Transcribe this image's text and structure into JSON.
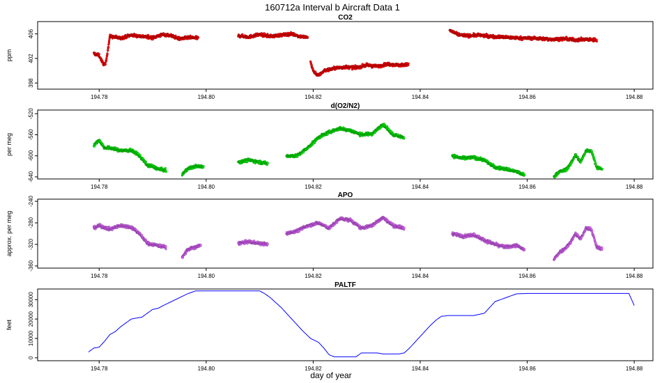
{
  "title": "160712a   Interval b Aircraft Data 1",
  "xlabel": "day of year",
  "chart_data": [
    {
      "type": "scatter",
      "title": "CO2",
      "ylabel": "ppm",
      "color": "#ff0000",
      "xlim": [
        194.7685,
        194.8835
      ],
      "ylim": [
        397.0,
        408.0
      ],
      "xticks": [
        194.78,
        194.8,
        194.82,
        194.84,
        194.86,
        194.88
      ],
      "xtick_labels": [
        "194.78",
        "194.80",
        "194.82",
        "194.84",
        "194.86",
        "194.88"
      ],
      "yticks": [
        398,
        402,
        406
      ],
      "ytick_labels": [
        "398",
        "402",
        "406"
      ],
      "segments": [
        {
          "x": [
            194.779,
            194.78,
            194.7807,
            194.7812,
            194.782,
            194.784,
            194.786,
            194.788,
            194.79,
            194.792,
            194.7935,
            194.795,
            194.797,
            194.7985
          ],
          "y": [
            402.8,
            402.5,
            401.2,
            401.0,
            405.6,
            405.3,
            405.8,
            405.6,
            405.4,
            405.9,
            405.7,
            405.2,
            405.4,
            405.3
          ]
        },
        {
          "x": [
            194.806,
            194.808,
            194.81,
            194.812,
            194.814,
            194.816,
            194.8175,
            194.819
          ],
          "y": [
            405.7,
            405.5,
            405.9,
            405.6,
            405.8,
            406.0,
            405.6,
            405.4
          ]
        },
        {
          "x": [
            194.8195,
            194.82,
            194.821,
            194.822,
            194.824,
            194.826,
            194.828,
            194.83,
            194.832,
            194.834,
            194.836,
            194.8378
          ],
          "y": [
            401.5,
            400.0,
            399.2,
            400.0,
            400.4,
            400.6,
            400.5,
            400.9,
            400.7,
            401.1,
            400.9,
            401.0
          ]
        },
        {
          "x": [
            194.8455,
            194.847,
            194.849,
            194.851,
            194.853,
            194.855,
            194.857,
            194.859,
            194.861,
            194.863,
            194.865,
            194.867,
            194.869,
            194.871,
            194.873
          ],
          "y": [
            406.6,
            405.9,
            405.7,
            405.8,
            405.6,
            405.5,
            405.4,
            405.3,
            405.3,
            405.2,
            405.1,
            405.2,
            405.0,
            405.1,
            405.0
          ]
        }
      ]
    },
    {
      "type": "scatter",
      "title": "d(O2/N2)",
      "ylabel": "per meg",
      "color": "#00ee00",
      "xlim": [
        194.7685,
        194.8835
      ],
      "ylim": [
        -644.0,
        -513.0
      ],
      "xticks": [
        194.78,
        194.8,
        194.82,
        194.84,
        194.86,
        194.88
      ],
      "xtick_labels": [
        "194.78",
        "194.80",
        "194.82",
        "194.84",
        "194.86",
        "194.88"
      ],
      "yticks": [
        -640,
        -600,
        -560,
        -520
      ],
      "ytick_labels": [
        "-640",
        "-600",
        "-560",
        "-520"
      ],
      "segments": [
        {
          "x": [
            194.779,
            194.78,
            194.781,
            194.782,
            194.784,
            194.786,
            194.787,
            194.788,
            194.789,
            194.79,
            194.791,
            194.7925
          ],
          "y": [
            -580,
            -570,
            -585,
            -585,
            -590,
            -590,
            -595,
            -605,
            -618,
            -620,
            -625,
            -628
          ]
        },
        {
          "x": [
            194.7955,
            194.7965,
            194.798,
            194.7995
          ],
          "y": [
            -636,
            -625,
            -620,
            -620
          ]
        },
        {
          "x": [
            194.806,
            194.808,
            194.81,
            194.8115
          ],
          "y": [
            -612,
            -608,
            -612,
            -615
          ]
        },
        {
          "x": [
            194.815,
            194.817,
            194.819,
            194.821,
            194.823,
            194.825,
            194.827,
            194.829,
            194.831,
            194.832,
            194.833,
            194.835,
            194.837
          ],
          "y": [
            -600,
            -600,
            -585,
            -565,
            -555,
            -548,
            -552,
            -560,
            -558,
            -550,
            -540,
            -560,
            -565
          ]
        },
        {
          "x": [
            194.846,
            194.848,
            194.85,
            194.852,
            194.854,
            194.856,
            194.858,
            194.8595
          ],
          "y": [
            -600,
            -605,
            -603,
            -608,
            -622,
            -625,
            -630,
            -637
          ]
        },
        {
          "x": [
            194.865,
            194.866,
            194.867,
            194.868,
            194.869,
            194.87,
            194.871,
            194.872,
            194.873,
            194.874
          ],
          "y": [
            -640,
            -630,
            -628,
            -618,
            -598,
            -612,
            -590,
            -590,
            -622,
            -625
          ]
        }
      ]
    },
    {
      "type": "scatter",
      "title": "APO",
      "ylabel": "approx. per meg",
      "color": "#e066ff",
      "xlim": [
        194.7685,
        194.8835
      ],
      "ylim": [
        -364.0,
        -236.0
      ],
      "xticks": [
        194.78,
        194.8,
        194.82,
        194.84,
        194.86,
        194.88
      ],
      "xtick_labels": [
        "194.78",
        "194.80",
        "194.82",
        "194.84",
        "194.86",
        "194.88"
      ],
      "yticks": [
        -360,
        -320,
        -280,
        -240
      ],
      "ytick_labels": [
        "-360",
        "-320",
        "-280",
        "-240"
      ],
      "segments": [
        {
          "x": [
            194.779,
            194.78,
            194.782,
            194.784,
            194.786,
            194.787,
            194.788,
            194.789,
            194.79,
            194.791,
            194.7925
          ],
          "y": [
            -290,
            -285,
            -292,
            -285,
            -288,
            -295,
            -305,
            -318,
            -320,
            -322,
            -325
          ]
        },
        {
          "x": [
            194.7955,
            194.7965,
            194.798,
            194.799
          ],
          "y": [
            -345,
            -330,
            -325,
            -322
          ]
        },
        {
          "x": [
            194.806,
            194.808,
            194.81,
            194.8115
          ],
          "y": [
            -318,
            -315,
            -318,
            -320
          ]
        },
        {
          "x": [
            194.815,
            194.817,
            194.819,
            194.821,
            194.823,
            194.825,
            194.827,
            194.829,
            194.831,
            194.833,
            194.835,
            194.837
          ],
          "y": [
            -300,
            -295,
            -285,
            -280,
            -290,
            -272,
            -275,
            -290,
            -285,
            -270,
            -285,
            -290
          ]
        },
        {
          "x": [
            194.846,
            194.848,
            194.85,
            194.852,
            194.854,
            194.856,
            194.858,
            194.8595
          ],
          "y": [
            -300,
            -305,
            -302,
            -312,
            -320,
            -325,
            -322,
            -330
          ]
        },
        {
          "x": [
            194.865,
            194.866,
            194.867,
            194.868,
            194.869,
            194.87,
            194.871,
            194.872,
            194.873,
            194.874
          ],
          "y": [
            -348,
            -335,
            -328,
            -318,
            -300,
            -310,
            -290,
            -292,
            -325,
            -328
          ]
        }
      ]
    },
    {
      "type": "line",
      "title": "PALTF",
      "ylabel": "feet",
      "color": "#0000ff",
      "xlim": [
        194.7685,
        194.8835
      ],
      "ylim": [
        -1500,
        35500
      ],
      "xticks": [
        194.78,
        194.8,
        194.82,
        194.84,
        194.86,
        194.88
      ],
      "xtick_labels": [
        "194.78",
        "194.80",
        "194.82",
        "194.84",
        "194.86",
        "194.88"
      ],
      "yticks": [
        0,
        10000,
        20000,
        30000
      ],
      "ytick_labels": [
        "0",
        "10000",
        "20000",
        "30000"
      ],
      "x": [
        194.778,
        194.779,
        194.78,
        194.781,
        194.782,
        194.783,
        194.784,
        194.786,
        194.788,
        194.789,
        194.79,
        194.791,
        194.792,
        194.7935,
        194.795,
        194.7965,
        194.798,
        194.8,
        194.805,
        194.81,
        194.811,
        194.812,
        194.814,
        194.816,
        194.818,
        194.8195,
        194.821,
        194.822,
        194.823,
        194.824,
        194.826,
        194.828,
        194.829,
        194.83,
        194.832,
        194.833,
        194.834,
        194.836,
        194.837,
        194.838,
        194.84,
        194.842,
        194.843,
        194.844,
        194.8445,
        194.845,
        194.846,
        194.85,
        194.852,
        194.854,
        194.856,
        194.858,
        194.86,
        194.865,
        194.87,
        194.875,
        194.879,
        194.88
      ],
      "y": [
        3000,
        5000,
        5500,
        8500,
        12000,
        13500,
        16000,
        20000,
        21000,
        23000,
        25000,
        25500,
        27000,
        29000,
        31000,
        33000,
        34500,
        34500,
        34500,
        34500,
        33000,
        31000,
        26000,
        20000,
        14000,
        10000,
        8000,
        5000,
        1500,
        500,
        500,
        500,
        2500,
        2500,
        2500,
        2000,
        2000,
        2000,
        2500,
        5000,
        11000,
        17000,
        19500,
        21500,
        21500,
        21800,
        21800,
        21800,
        23000,
        29000,
        31000,
        33000,
        33200,
        33200,
        33200,
        33200,
        33200,
        27000
      ]
    }
  ]
}
